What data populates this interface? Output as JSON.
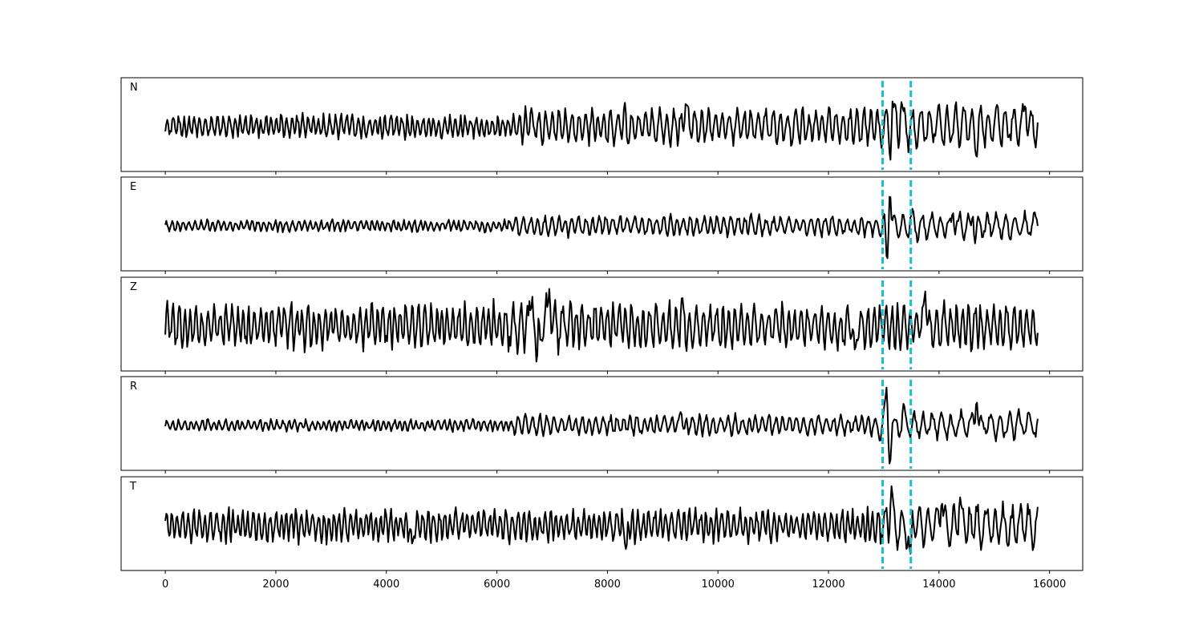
{
  "chart_data": {
    "type": "line",
    "title": "",
    "xlabel": "",
    "ylabel": "",
    "xlim": [
      -800,
      16600
    ],
    "xticks": [
      "0",
      "2000",
      "4000",
      "6000",
      "8000",
      "10000",
      "12000",
      "14000",
      "16000"
    ],
    "x_range": [
      0,
      15800
    ],
    "markers_x": [
      12980,
      13490
    ],
    "marker_color": "#17becf",
    "line_color": "#000000",
    "grid": false,
    "panels": [
      {
        "label": "N",
        "segments": [
          {
            "x0": 0,
            "x1": 6400,
            "amp": 0.28,
            "period": 95
          },
          {
            "x0": 6400,
            "x1": 12900,
            "amp": 0.45,
            "period": 120
          },
          {
            "x0": 12900,
            "x1": 15800,
            "amp": 0.55,
            "period": 150
          }
        ],
        "spikes": [
          {
            "x": 8340,
            "value": -0.72
          },
          {
            "x": 8320,
            "value": 0.62
          },
          {
            "x": 9420,
            "value": 0.6
          },
          {
            "x": 13150,
            "value": 1.0
          },
          {
            "x": 13120,
            "value": -0.85
          },
          {
            "x": 13320,
            "value": 0.62
          },
          {
            "x": 14680,
            "value": -0.8
          },
          {
            "x": 15050,
            "value": 0.55
          },
          {
            "x": 15560,
            "value": 0.55
          }
        ]
      },
      {
        "label": "E",
        "segments": [
          {
            "x0": 0,
            "x1": 6300,
            "amp": 0.14,
            "period": 95
          },
          {
            "x0": 6300,
            "x1": 12900,
            "amp": 0.25,
            "period": 120
          },
          {
            "x0": 12900,
            "x1": 15800,
            "amp": 0.35,
            "period": 160
          }
        ],
        "spikes": [
          {
            "x": 13110,
            "value": 0.95
          },
          {
            "x": 13060,
            "value": -0.9
          },
          {
            "x": 14250,
            "value": 0.35
          },
          {
            "x": 14620,
            "value": 0.45
          },
          {
            "x": 14650,
            "value": -0.45
          }
        ]
      },
      {
        "label": "Z",
        "segments": [
          {
            "x0": 0,
            "x1": 6200,
            "amp": 0.55,
            "period": 100
          },
          {
            "x0": 6200,
            "x1": 7300,
            "amp": 0.7,
            "period": 140
          },
          {
            "x0": 7300,
            "x1": 15800,
            "amp": 0.55,
            "period": 110
          }
        ],
        "spikes": [
          {
            "x": 6720,
            "value": -0.98
          },
          {
            "x": 6950,
            "value": 0.95
          },
          {
            "x": 6640,
            "value": 0.75
          },
          {
            "x": 9350,
            "value": 0.75
          },
          {
            "x": 12480,
            "value": -0.65
          },
          {
            "x": 13750,
            "value": 0.88
          }
        ]
      },
      {
        "label": "R",
        "segments": [
          {
            "x0": 0,
            "x1": 6300,
            "amp": 0.14,
            "period": 95
          },
          {
            "x0": 6300,
            "x1": 12900,
            "amp": 0.25,
            "period": 120
          },
          {
            "x0": 12900,
            "x1": 15800,
            "amp": 0.35,
            "period": 160
          }
        ],
        "spikes": [
          {
            "x": 13050,
            "value": 0.98
          },
          {
            "x": 13110,
            "value": -1.0
          },
          {
            "x": 13360,
            "value": 0.55
          },
          {
            "x": 14680,
            "value": 0.65
          },
          {
            "x": 9330,
            "value": 0.35
          }
        ]
      },
      {
        "label": "T",
        "segments": [
          {
            "x0": 0,
            "x1": 12900,
            "amp": 0.4,
            "period": 95
          },
          {
            "x0": 12900,
            "x1": 15800,
            "amp": 0.55,
            "period": 140
          }
        ],
        "spikes": [
          {
            "x": 13140,
            "value": 1.0
          },
          {
            "x": 13480,
            "value": -0.72
          },
          {
            "x": 4470,
            "value": -0.5
          },
          {
            "x": 8340,
            "value": -0.62
          },
          {
            "x": 14380,
            "value": 0.72
          },
          {
            "x": 14050,
            "value": 0.62
          }
        ]
      }
    ]
  }
}
